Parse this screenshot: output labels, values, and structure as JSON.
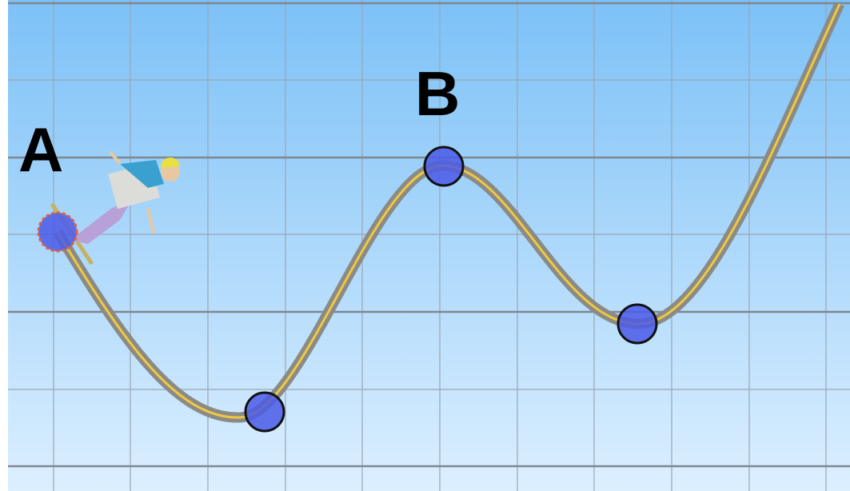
{
  "points": [
    {
      "label": "A"
    },
    {
      "label": "B"
    }
  ]
}
